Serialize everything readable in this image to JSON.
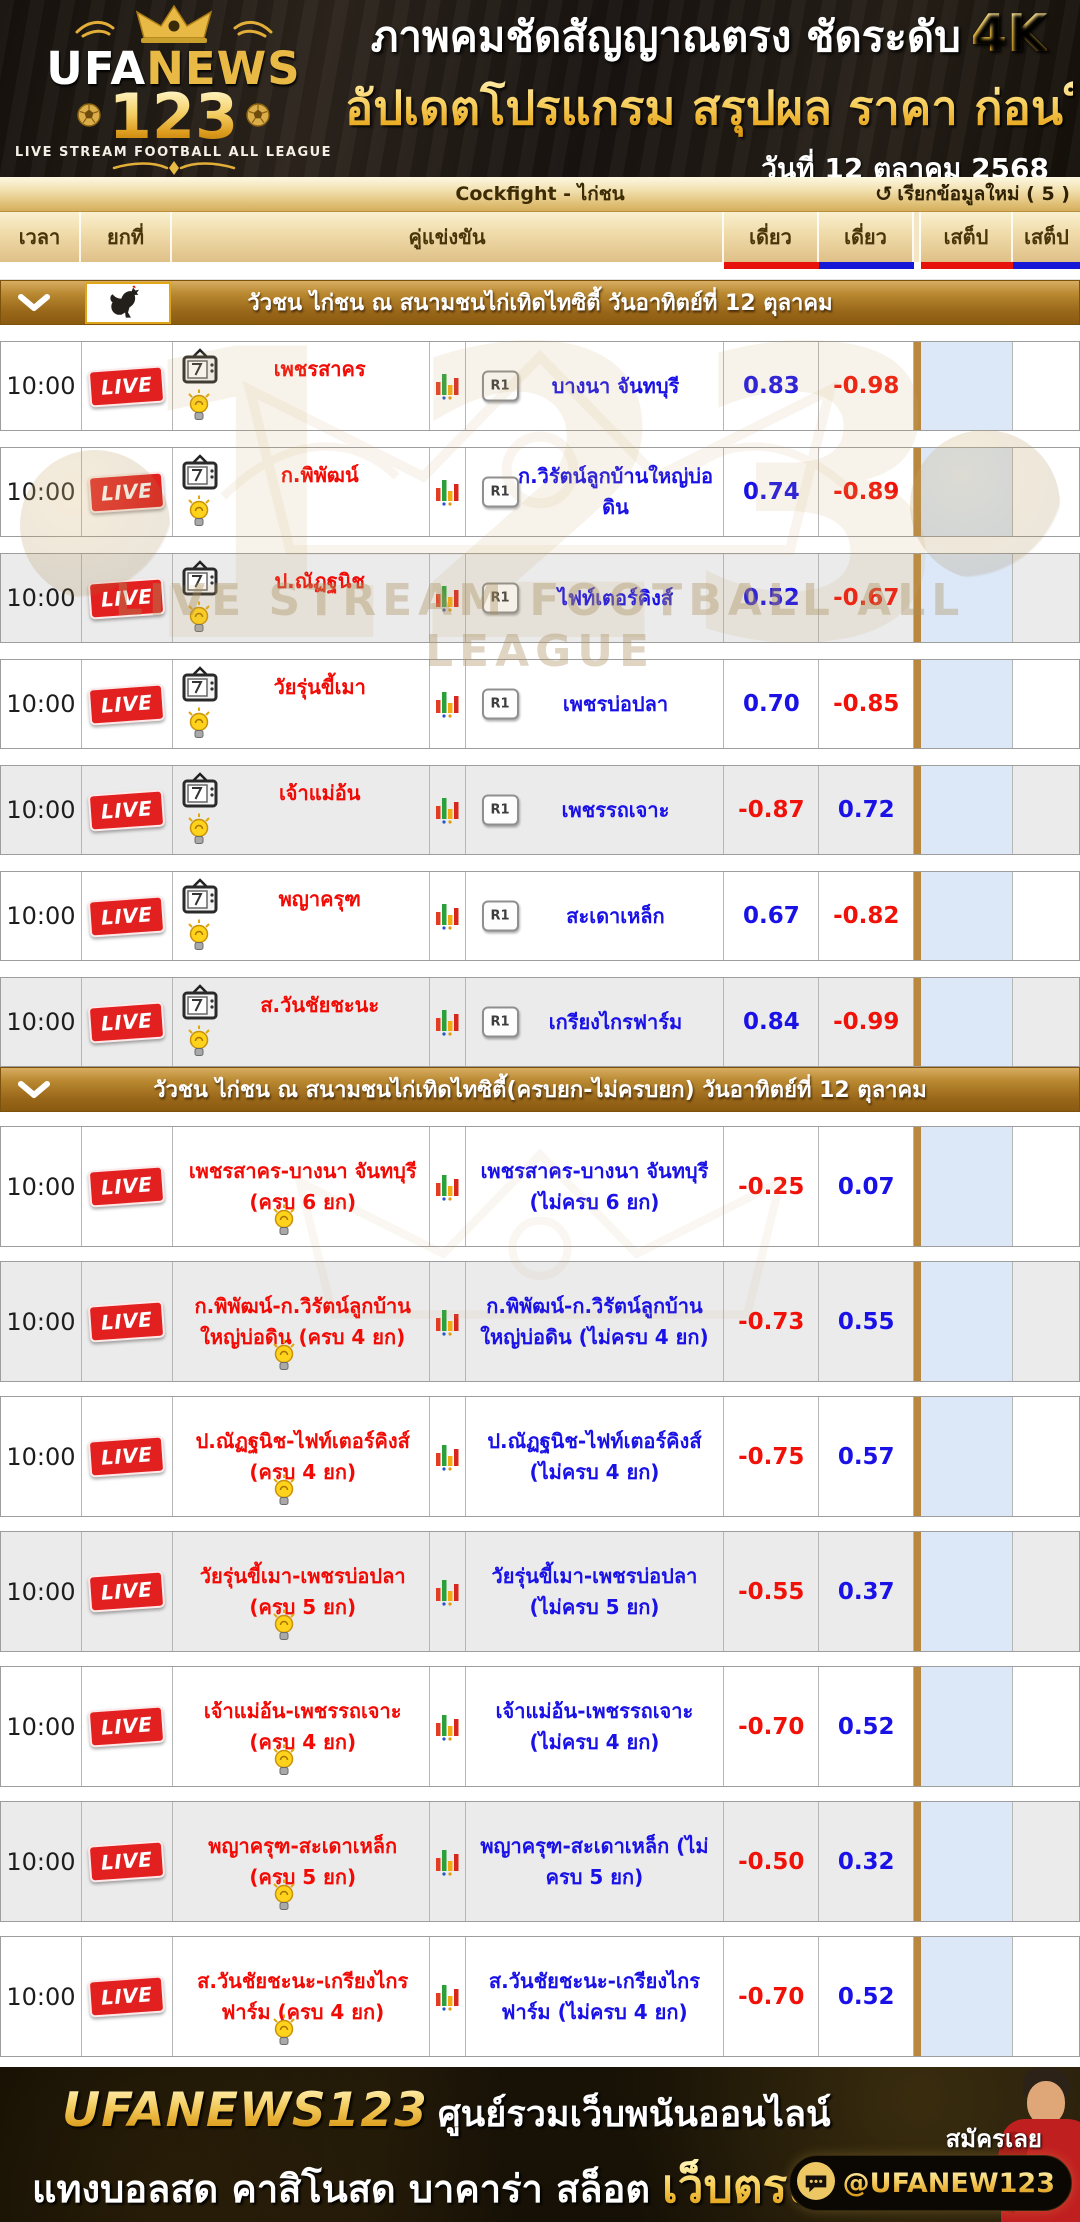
{
  "header": {
    "logo": {
      "brand_white": "UFA",
      "brand_gold": "NEWS",
      "number": "123",
      "tagline": "LIVE STREAM FOOTBALL ALL LEAGUE"
    },
    "headline_line1": "ภาพคมชัดสัญญาณตรง ชัดระดับ",
    "headline_4k": "4K",
    "headline_line2": "อัปเดตโปรแกรม สรุปผล ราคา ก่อนใคร",
    "date": "วันที่ 12 ตุลาคม  2568"
  },
  "toolbar": {
    "title": "Cockfight - ไก่ชน",
    "refresh_icon": "↻",
    "refresh_label": "เรียกข้อมูลใหม่ ( 5 )"
  },
  "table": {
    "headers": {
      "time": "เวลา",
      "round": "ยกที่",
      "match": "คู่แข่งขัน",
      "single1": "เดี่ยว",
      "single2": "เดี่ยว",
      "step1": "เสต็ป",
      "step2": "เสต็ป"
    },
    "live_label": "LIVE",
    "r1_label": "R1",
    "sections": [
      {
        "title": "วัวชน ไก่ชน ณ สนามชนไก่เทิดไทซิตี้ วันอาทิตย์ที่ 12 ตุลาคม",
        "show_rooster": true,
        "show_tv_icon": true,
        "show_r1_badge": true,
        "tall_rows": false,
        "rows": [
          {
            "time": "10:00",
            "live": true,
            "home": "เพชรสาคร",
            "away": "บางนา จันทบุรี",
            "odd1": "0.83",
            "odd2": "-0.98",
            "shaded": false
          },
          {
            "time": "10:00",
            "live": true,
            "home": "ก.พิพัฒน์",
            "away": "ก.วิรัตน์ลูกบ้านใหญ่บ่อดิน",
            "odd1": "0.74",
            "odd2": "-0.89",
            "shaded": false
          },
          {
            "time": "10:00",
            "live": true,
            "home": "ป.ณัฏฐนิช",
            "away": "ไฟท์เตอร์คิงส์",
            "odd1": "0.52",
            "odd2": "-0.67",
            "shaded": true
          },
          {
            "time": "10:00",
            "live": true,
            "home": "วัยรุ่นขี้เมา",
            "away": "เพชรบ่อปลา",
            "odd1": "0.70",
            "odd2": "-0.85",
            "shaded": false
          },
          {
            "time": "10:00",
            "live": true,
            "home": "เจ้าแม่อ้น",
            "away": "เพชรรถเจาะ",
            "odd1": "-0.87",
            "odd2": "0.72",
            "shaded": true
          },
          {
            "time": "10:00",
            "live": true,
            "home": "พญาครุฑ",
            "away": "สะเดาเหล็ก",
            "odd1": "0.67",
            "odd2": "-0.82",
            "shaded": false
          },
          {
            "time": "10:00",
            "live": true,
            "home": "ส.วันชัยชะนะ",
            "away": "เกรียงไกรฟาร์ม",
            "odd1": "0.84",
            "odd2": "-0.99",
            "shaded": true
          }
        ]
      },
      {
        "title": "วัวชน ไก่ชน ณ สนามชนไก่เทิดไทซิตี้(ครบยก-ไม่ครบยก) วันอาทิตย์ที่ 12 ตุลาคม",
        "show_rooster": false,
        "show_tv_icon": false,
        "show_r1_badge": false,
        "tall_rows": true,
        "rows": [
          {
            "time": "10:00",
            "live": true,
            "home": "เพชรสาคร-บางนา จันทบุรี (ครบ 6 ยก)",
            "away": "เพชรสาคร-บางนา จันทบุรี (ไม่ครบ 6 ยก)",
            "odd1": "-0.25",
            "odd2": "0.07",
            "shaded": false
          },
          {
            "time": "10:00",
            "live": true,
            "home": "ก.พิพัฒน์-ก.วิรัตน์ลูกบ้านใหญ่บ่อดิน (ครบ 4 ยก)",
            "away": "ก.พิพัฒน์-ก.วิรัตน์ลูกบ้านใหญ่บ่อดิน (ไม่ครบ 4 ยก)",
            "odd1": "-0.73",
            "odd2": "0.55",
            "shaded": true
          },
          {
            "time": "10:00",
            "live": true,
            "home": "ป.ณัฏฐนิช-ไฟท์เตอร์คิงส์ (ครบ 4 ยก)",
            "away": "ป.ณัฏฐนิช-ไฟท์เตอร์คิงส์ (ไม่ครบ 4 ยก)",
            "odd1": "-0.75",
            "odd2": "0.57",
            "shaded": false
          },
          {
            "time": "10:00",
            "live": true,
            "home": "วัยรุ่นขี้เมา-เพชรบ่อปลา (ครบ 5 ยก)",
            "away": "วัยรุ่นขี้เมา-เพชรบ่อปลา (ไม่ครบ 5 ยก)",
            "odd1": "-0.55",
            "odd2": "0.37",
            "shaded": true
          },
          {
            "time": "10:00",
            "live": true,
            "home": "เจ้าแม่อ้น-เพชรรถเจาะ (ครบ 4 ยก)",
            "away": "เจ้าแม่อ้น-เพชรรถเจาะ (ไม่ครบ 4 ยก)",
            "odd1": "-0.70",
            "odd2": "0.52",
            "shaded": false
          },
          {
            "time": "10:00",
            "live": true,
            "home": "พญาครุฑ-สะเดาเหล็ก (ครบ 5 ยก)",
            "away": "พญาครุฑ-สะเดาเหล็ก (ไม่ครบ 5 ยก)",
            "odd1": "-0.50",
            "odd2": "0.32",
            "shaded": true
          },
          {
            "time": "10:00",
            "live": true,
            "home": "ส.วันชัยชะนะ-เกรียงไกรฟาร์ม (ครบ 4 ยก)",
            "away": "ส.วันชัยชะนะ-เกรียงไกรฟาร์ม (ไม่ครบ 4 ยก)",
            "odd1": "-0.70",
            "odd2": "0.52",
            "shaded": false
          }
        ]
      }
    ]
  },
  "watermark": {
    "number": "123",
    "line": "LIVE STREAM FOOTBALL ALL LEAGUE"
  },
  "footer": {
    "brand": "UFANEWS123",
    "tagline1": "ศูนย์รวมเว็บพนันออนไลน์",
    "tagline2": "แทงบอลสด คาสิโนสด บาคาร่า สล็อต",
    "tagline2_highlight": "เว็บตรง",
    "cta": "สมัครเลย",
    "line_handle": "@UFANEW123"
  },
  "colors": {
    "odds_positive_blue": "#1911e6",
    "odds_negative_red": "#f01208",
    "live_red": "#e32020",
    "gold_accent": "#d4ae5c",
    "section_bar_brown": "#9a681a",
    "step_column_blue": "#dce8f8"
  }
}
